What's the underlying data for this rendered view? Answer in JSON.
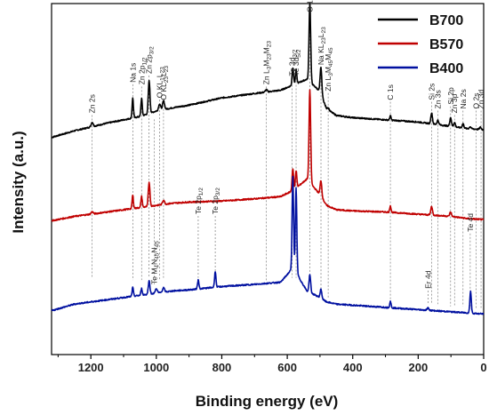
{
  "chart_data": {
    "type": "line",
    "xlabel": "Binding energy (eV)",
    "ylabel": "Intensity (a.u.)",
    "xlim": [
      1320,
      0
    ],
    "x_reversed": true,
    "x_ticks": [
      1200,
      1000,
      800,
      600,
      400,
      200,
      0
    ],
    "y_ticks_shown": false,
    "legend_position": "top-right",
    "series": [
      {
        "name": "B700",
        "color": "#000000"
      },
      {
        "name": "B570",
        "color": "#c00000"
      },
      {
        "name": "B400",
        "color": "#0010a0"
      }
    ],
    "curves": [
      {
        "series": "B700",
        "baseline": [
          [
            1320,
            0.49
          ],
          [
            1250,
            0.52
          ],
          [
            1150,
            0.555
          ],
          [
            1100,
            0.57
          ],
          [
            1050,
            0.585
          ],
          [
            1000,
            0.61
          ],
          [
            950,
            0.625
          ],
          [
            900,
            0.637
          ],
          [
            800,
            0.67
          ],
          [
            700,
            0.69
          ],
          [
            620,
            0.705
          ],
          [
            580,
            0.73
          ],
          [
            540,
            0.755
          ],
          [
            500,
            0.7
          ],
          [
            480,
            0.62
          ],
          [
            450,
            0.59
          ],
          [
            400,
            0.58
          ],
          [
            300,
            0.57
          ],
          [
            200,
            0.56
          ],
          [
            100,
            0.54
          ],
          [
            50,
            0.53
          ],
          [
            0,
            0.525
          ]
        ],
        "peaks": [
          [
            1196,
            0.02,
            3
          ],
          [
            1072,
            0.09,
            2
          ],
          [
            1045,
            0.08,
            2
          ],
          [
            1022,
            0.15,
            2.5
          ],
          [
            990,
            0.03,
            3
          ],
          [
            978,
            0.04,
            3
          ],
          [
            664,
            0.01,
            3
          ],
          [
            583,
            0.08,
            2.2
          ],
          [
            573,
            0.06,
            2.2
          ],
          [
            531,
            0.36,
            2.5
          ],
          [
            497,
            0.12,
            2.5
          ],
          [
            475,
            0.01,
            3
          ],
          [
            285,
            0.02,
            2
          ],
          [
            159,
            0.05,
            2.5
          ],
          [
            140,
            0.02,
            2.5
          ],
          [
            101,
            0.04,
            2.5
          ],
          [
            89,
            0.02,
            2.5
          ],
          [
            63,
            0.02,
            2.5
          ],
          [
            41,
            0.01,
            2.5
          ],
          [
            10,
            0.01,
            2.5
          ]
        ]
      },
      {
        "series": "B570",
        "baseline": [
          [
            1320,
            0.11
          ],
          [
            1250,
            0.13
          ],
          [
            1150,
            0.15
          ],
          [
            1100,
            0.16
          ],
          [
            1050,
            0.17
          ],
          [
            1000,
            0.18
          ],
          [
            950,
            0.19
          ],
          [
            900,
            0.195
          ],
          [
            800,
            0.2
          ],
          [
            700,
            0.21
          ],
          [
            620,
            0.22
          ],
          [
            580,
            0.25
          ],
          [
            540,
            0.3
          ],
          [
            500,
            0.23
          ],
          [
            480,
            0.18
          ],
          [
            450,
            0.16
          ],
          [
            400,
            0.155
          ],
          [
            300,
            0.15
          ],
          [
            200,
            0.14
          ],
          [
            100,
            0.13
          ],
          [
            50,
            0.12
          ],
          [
            0,
            0.115
          ]
        ],
        "peaks": [
          [
            1196,
            0.01,
            3
          ],
          [
            1072,
            0.06,
            2
          ],
          [
            1045,
            0.05,
            2
          ],
          [
            1022,
            0.11,
            2.5
          ],
          [
            978,
            0.02,
            3
          ],
          [
            583,
            0.1,
            2.2
          ],
          [
            573,
            0.08,
            2.2
          ],
          [
            531,
            0.42,
            2.5
          ],
          [
            497,
            0.07,
            2.5
          ],
          [
            285,
            0.03,
            2
          ],
          [
            159,
            0.04,
            2.5
          ],
          [
            101,
            0.02,
            2.5
          ]
        ]
      },
      {
        "series": "B400",
        "baseline": [
          [
            1320,
            -0.3
          ],
          [
            1250,
            -0.27
          ],
          [
            1150,
            -0.25
          ],
          [
            1100,
            -0.24
          ],
          [
            1050,
            -0.23
          ],
          [
            1000,
            -0.22
          ],
          [
            950,
            -0.21
          ],
          [
            900,
            -0.205
          ],
          [
            800,
            -0.19
          ],
          [
            700,
            -0.18
          ],
          [
            620,
            -0.17
          ],
          [
            580,
            -0.1
          ],
          [
            560,
            -0.16
          ],
          [
            540,
            -0.21
          ],
          [
            500,
            -0.24
          ],
          [
            480,
            -0.26
          ],
          [
            450,
            -0.27
          ],
          [
            400,
            -0.275
          ],
          [
            300,
            -0.285
          ],
          [
            200,
            -0.295
          ],
          [
            100,
            -0.305
          ],
          [
            50,
            -0.31
          ],
          [
            0,
            -0.315
          ]
        ],
        "peaks": [
          [
            1072,
            0.04,
            2
          ],
          [
            1045,
            0.03,
            2
          ],
          [
            1022,
            0.06,
            2.5
          ],
          [
            1000,
            0.02,
            3
          ],
          [
            978,
            0.02,
            3
          ],
          [
            872,
            0.04,
            2.2
          ],
          [
            820,
            0.07,
            2.2
          ],
          [
            583,
            0.42,
            2.2
          ],
          [
            573,
            0.38,
            2.2
          ],
          [
            531,
            0.08,
            2.5
          ],
          [
            497,
            0.04,
            2.5
          ],
          [
            285,
            0.03,
            2
          ],
          [
            170,
            0.01,
            3
          ],
          [
            40,
            0.1,
            2.2
          ]
        ]
      }
    ],
    "annotations": [
      {
        "x": 1196,
        "text": "Zn 2s",
        "label_y": 0.6,
        "line_to": -0.15
      },
      {
        "x": 1072,
        "text": "Na 1s",
        "label_y": 0.74,
        "line_to": -0.16
      },
      {
        "x": 1045,
        "text": "Zn 2p1/2",
        "label_y": 0.73,
        "line_to": -0.16
      },
      {
        "x": 1022,
        "text": "Zn 2p3/2",
        "label_y": 0.78,
        "line_to": -0.15
      },
      {
        "x": 1006,
        "text": "Te M4N45N45",
        "label_y": -0.18,
        "line_to": 0.58
      },
      {
        "x": 990,
        "text": "O KL1L23",
        "label_y": 0.67,
        "line_to": -0.16
      },
      {
        "x": 978,
        "text": "O KL23L23",
        "label_y": 0.66,
        "line_to": -0.15
      },
      {
        "x": 872,
        "text": "Te 2p1/2",
        "label_y": 0.14,
        "line_to": -0.15
      },
      {
        "x": 820,
        "text": "Te 2p3/2",
        "label_y": 0.14,
        "line_to": -0.13
      },
      {
        "x": 664,
        "text": "Zn L3M23M23",
        "label_y": 0.73,
        "line_to": -0.17
      },
      {
        "x": 585,
        "text": "Te 3d3/2",
        "label_y": 0.77,
        "line_to": -0.15
      },
      {
        "x": 573,
        "text": "Te 3d5/2",
        "label_y": 0.77,
        "line_to": -0.15
      },
      {
        "x": 531,
        "text": "O 1s",
        "label_y": 1.06,
        "line_to": -0.15
      },
      {
        "x": 497,
        "text": "Na KL23L23",
        "label_y": 0.82,
        "line_to": -0.22
      },
      {
        "x": 475,
        "text": "Zn L3M45M45",
        "label_y": 0.7,
        "line_to": -0.24
      },
      {
        "x": 285,
        "text": "C 1s",
        "label_y": 0.66,
        "line_to": -0.26
      },
      {
        "x": 170,
        "text": "Er 4d",
        "label_y": -0.2,
        "line_to": -0.27
      },
      {
        "x": 159,
        "text": "Si 2s",
        "label_y": 0.66,
        "line_to": -0.27
      },
      {
        "x": 140,
        "text": "Zn 3s",
        "label_y": 0.62,
        "line_to": -0.27
      },
      {
        "x": 101,
        "text": "Si 2p",
        "label_y": 0.64,
        "line_to": -0.28
      },
      {
        "x": 89,
        "text": "Zn 3p",
        "label_y": 0.6,
        "line_to": -0.28
      },
      {
        "x": 63,
        "text": "Na 2s",
        "label_y": 0.62,
        "line_to": -0.28
      },
      {
        "x": 41,
        "text": "Te 4d",
        "label_y": 0.06,
        "line_to": -0.29
      },
      {
        "x": 23,
        "text": "O 2s",
        "label_y": 0.62,
        "line_to": -0.29
      },
      {
        "x": 8,
        "text": "Zn 3d",
        "label_y": 0.62,
        "line_to": -0.29
      }
    ]
  }
}
